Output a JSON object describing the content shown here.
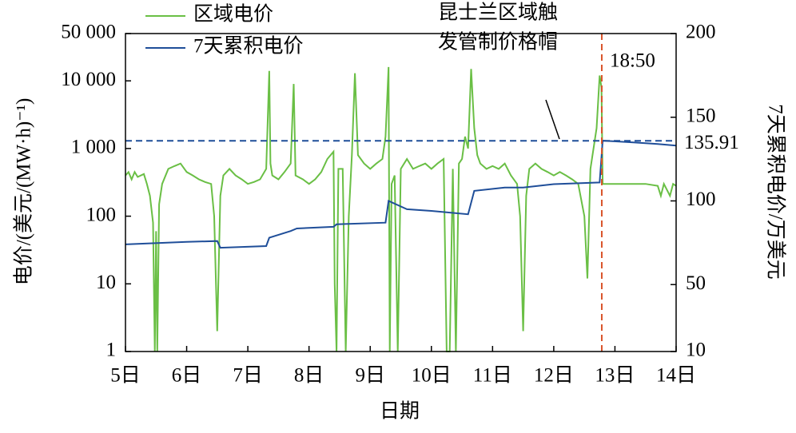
{
  "chart_data": {
    "type": "line",
    "xlabel": "日期",
    "ylabel": "电价/(美元/(MW·h)⁻¹)",
    "y2label": "7天累积电价/万美元",
    "xlim": [
      5,
      14
    ],
    "xticks": [
      {
        "value": 5,
        "label": "5日"
      },
      {
        "value": 6,
        "label": "6日"
      },
      {
        "value": 7,
        "label": "7日"
      },
      {
        "value": 8,
        "label": "8日"
      },
      {
        "value": 9,
        "label": "9日"
      },
      {
        "value": 10,
        "label": "10日"
      },
      {
        "value": 11,
        "label": "11日"
      },
      {
        "value": 12,
        "label": "12日"
      },
      {
        "value": 13,
        "label": "13日"
      },
      {
        "value": 14,
        "label": "14日"
      }
    ],
    "ylim": [
      1,
      50000
    ],
    "yscale": "log",
    "yticks": [
      {
        "value": 50000,
        "label": "50 000"
      },
      {
        "value": 10000,
        "label": "10 000"
      },
      {
        "value": 1000,
        "label": "1 000"
      },
      100,
      10,
      1
    ],
    "y2lim": [
      10,
      200
    ],
    "y2ticks": [
      200,
      150,
      100,
      50,
      10
    ],
    "annotations": [
      {
        "text": "昆士兰区域触",
        "text2": "发管制价格帽"
      },
      {
        "text": "18:50",
        "x": 12.785
      },
      {
        "text": "135.91",
        "y2": 135.91
      }
    ],
    "series": [
      {
        "name": "区域电价",
        "color": "#6abf45",
        "x": [
          5.0,
          5.05,
          5.1,
          5.15,
          5.2,
          5.3,
          5.35,
          5.4,
          5.45,
          5.48,
          5.5,
          5.52,
          5.55,
          5.6,
          5.7,
          5.8,
          5.9,
          6.0,
          6.1,
          6.2,
          6.3,
          6.4,
          6.45,
          6.5,
          6.55,
          6.6,
          6.7,
          6.8,
          6.9,
          7.0,
          7.1,
          7.2,
          7.3,
          7.35,
          7.37,
          7.4,
          7.5,
          7.6,
          7.7,
          7.75,
          7.78,
          7.9,
          8.0,
          8.1,
          8.2,
          8.3,
          8.4,
          8.42,
          8.45,
          8.48,
          8.55,
          8.6,
          8.65,
          8.7,
          8.75,
          8.8,
          8.9,
          9.0,
          9.1,
          9.2,
          9.25,
          9.3,
          9.32,
          9.35,
          9.4,
          9.45,
          9.5,
          9.6,
          9.7,
          9.8,
          9.9,
          10.0,
          10.1,
          10.2,
          10.25,
          10.3,
          10.35,
          10.4,
          10.45,
          10.5,
          10.55,
          10.6,
          10.65,
          10.7,
          10.75,
          10.8,
          10.9,
          11.0,
          11.1,
          11.2,
          11.3,
          11.4,
          11.45,
          11.5,
          11.55,
          11.6,
          11.7,
          11.8,
          11.9,
          12.0,
          12.1,
          12.2,
          12.3,
          12.4,
          12.5,
          12.55,
          12.6,
          12.7,
          12.75,
          12.78,
          12.8,
          13.0,
          13.2,
          13.5,
          13.7,
          13.75,
          13.8,
          13.9,
          13.95,
          14.0
        ],
        "values": [
          400,
          450,
          350,
          450,
          380,
          420,
          300,
          200,
          80,
          1,
          60,
          1,
          150,
          300,
          500,
          550,
          600,
          450,
          400,
          350,
          320,
          300,
          100,
          2,
          200,
          400,
          500,
          400,
          350,
          300,
          320,
          350,
          500,
          14000,
          600,
          400,
          350,
          450,
          600,
          9000,
          400,
          350,
          300,
          350,
          450,
          700,
          900,
          10,
          1,
          500,
          500,
          1,
          100,
          800,
          13000,
          800,
          600,
          500,
          600,
          700,
          1500,
          16000,
          1,
          300,
          400,
          1,
          500,
          700,
          500,
          550,
          600,
          500,
          600,
          700,
          1,
          1,
          500,
          1,
          600,
          700,
          1500,
          1000,
          15000,
          2000,
          800,
          600,
          500,
          550,
          500,
          600,
          400,
          300,
          100,
          2,
          200,
          500,
          600,
          500,
          450,
          400,
          450,
          400,
          350,
          300,
          100,
          12,
          500,
          2000,
          12000,
          8000,
          300,
          300,
          300,
          300,
          280,
          200,
          300,
          200,
          300,
          280
        ]
      },
      {
        "name": "7天累积电价",
        "color": "#1f4e99",
        "axis": "y2",
        "x": [
          5.0,
          6.0,
          6.5,
          6.55,
          7.3,
          7.35,
          7.7,
          7.8,
          8.4,
          8.45,
          9.25,
          9.3,
          9.6,
          10.0,
          10.6,
          10.7,
          11.2,
          11.5,
          12.0,
          12.75,
          12.8,
          13.3,
          13.7,
          14.0
        ],
        "values": [
          74,
          75.5,
          76,
          72,
          73,
          78,
          82,
          83.5,
          84.5,
          86,
          87,
          100,
          95,
          94,
          92,
          106,
          108,
          108,
          110,
          111,
          136,
          135,
          134,
          133
        ]
      }
    ]
  }
}
